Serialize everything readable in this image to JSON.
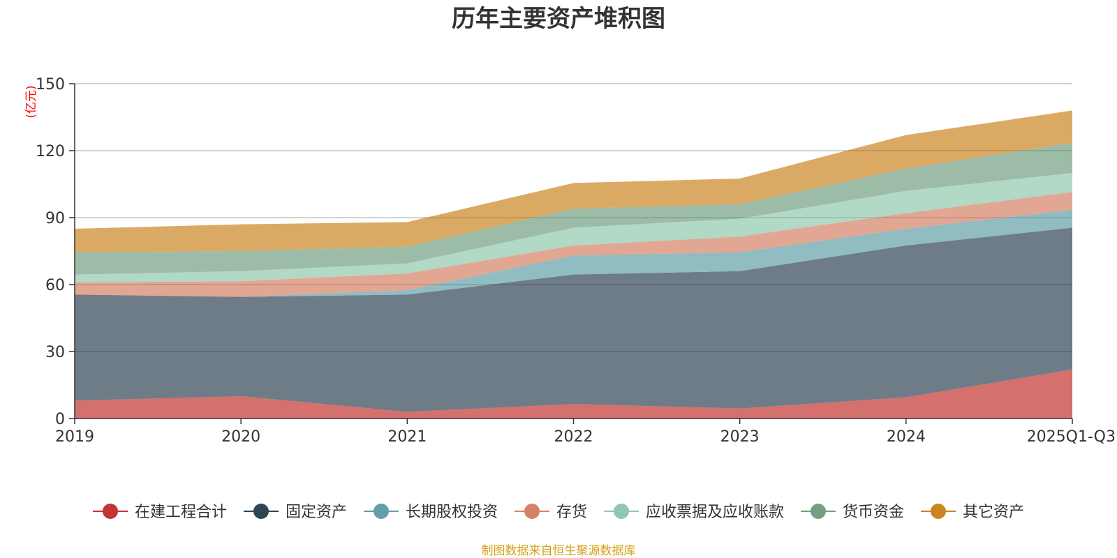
{
  "chart_data": {
    "type": "area",
    "stacked": true,
    "title": "历年主要资产堆积图",
    "ylabel": "(亿元)",
    "xlabel": "",
    "categories": [
      "2019",
      "2020",
      "2021",
      "2022",
      "2023",
      "2024",
      "2025Q1-Q3"
    ],
    "ylim": [
      0,
      150
    ],
    "yticks": [
      0,
      30,
      60,
      90,
      120,
      150
    ],
    "grid": true,
    "legend_position": "bottom",
    "series": [
      {
        "name": "在建工程合计",
        "color": "#c23531",
        "values": [
          8,
          10,
          3,
          6.5,
          4.5,
          9.5,
          22
        ]
      },
      {
        "name": "固定资产",
        "color": "#2f4554",
        "values": [
          47.5,
          44.5,
          52.5,
          58,
          61.5,
          68,
          63.5
        ]
      },
      {
        "name": "长期股权投资",
        "color": "#61a0a8",
        "values": [
          0,
          0,
          2,
          8.5,
          8.5,
          7.5,
          8
        ]
      },
      {
        "name": "存货",
        "color": "#d48265",
        "values": [
          5.5,
          7,
          7.5,
          4.5,
          7,
          7,
          8
        ]
      },
      {
        "name": "应收票据及应收账款",
        "color": "#91c7ae",
        "values": [
          3.5,
          4.5,
          4.5,
          8,
          8,
          10,
          8.5
        ]
      },
      {
        "name": "货币资金",
        "color": "#749f83",
        "values": [
          10,
          9,
          7.5,
          8.5,
          6.5,
          10,
          13.5
        ]
      },
      {
        "name": "其它资产",
        "color": "#ca8622",
        "values": [
          10.5,
          12,
          11,
          11.5,
          11.5,
          15,
          14.5
        ]
      }
    ],
    "source": "制图数据来自恒生聚源数据库"
  }
}
